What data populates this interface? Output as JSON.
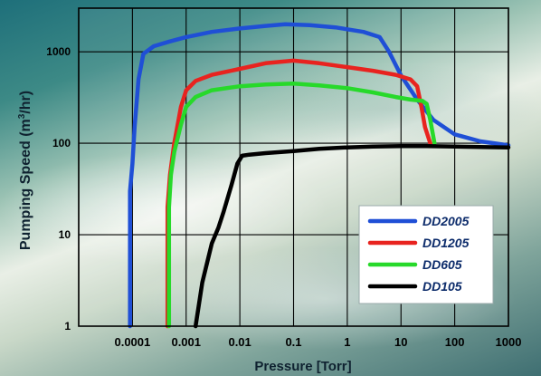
{
  "chart_data": {
    "type": "line",
    "xlabel": "Pressure [Torr]",
    "ylabel_main": "Pumping Speed (m",
    "ylabel_sup": "3",
    "ylabel_end": "/hr)",
    "x_scale": "log",
    "y_scale": "log",
    "xlim": [
      1e-05,
      1000
    ],
    "ylim": [
      1,
      3000
    ],
    "x_ticks": [
      {
        "value": 0.0001,
        "label": "0.0001"
      },
      {
        "value": 0.001,
        "label": "0.001"
      },
      {
        "value": 0.01,
        "label": "0.01"
      },
      {
        "value": 0.1,
        "label": "0.1"
      },
      {
        "value": 1,
        "label": "1"
      },
      {
        "value": 10,
        "label": "10"
      },
      {
        "value": 100,
        "label": "100"
      },
      {
        "value": 1000,
        "label": "1000"
      }
    ],
    "y_ticks": [
      {
        "value": 1,
        "label": "1"
      },
      {
        "value": 10,
        "label": "10"
      },
      {
        "value": 100,
        "label": "100"
      },
      {
        "value": 1000,
        "label": "1000"
      }
    ],
    "grid": true,
    "legend_position": "lower-right",
    "series": [
      {
        "name": "DD2005",
        "color": "#1f4fd6",
        "points": [
          [
            9e-05,
            1
          ],
          [
            9e-05,
            30
          ],
          [
            0.0001,
            60
          ],
          [
            0.00011,
            150
          ],
          [
            0.00013,
            500
          ],
          [
            0.00016,
            950
          ],
          [
            0.00025,
            1150
          ],
          [
            0.0005,
            1300
          ],
          [
            0.001,
            1450
          ],
          [
            0.003,
            1650
          ],
          [
            0.01,
            1800
          ],
          [
            0.03,
            1920
          ],
          [
            0.07,
            2000
          ],
          [
            0.2,
            1960
          ],
          [
            0.6,
            1850
          ],
          [
            2,
            1650
          ],
          [
            4,
            1450
          ],
          [
            6,
            1000
          ],
          [
            10,
            550
          ],
          [
            20,
            300
          ],
          [
            40,
            180
          ],
          [
            100,
            125
          ],
          [
            300,
            105
          ],
          [
            1000,
            95
          ]
        ]
      },
      {
        "name": "DD1205",
        "color": "#e8231f",
        "points": [
          [
            0.00045,
            1
          ],
          [
            0.00045,
            20
          ],
          [
            0.0005,
            45
          ],
          [
            0.0006,
            100
          ],
          [
            0.0008,
            250
          ],
          [
            0.001,
            380
          ],
          [
            0.0015,
            480
          ],
          [
            0.003,
            560
          ],
          [
            0.01,
            650
          ],
          [
            0.03,
            750
          ],
          [
            0.1,
            800
          ],
          [
            0.3,
            750
          ],
          [
            1,
            680
          ],
          [
            3,
            620
          ],
          [
            8,
            560
          ],
          [
            15,
            500
          ],
          [
            20,
            420
          ],
          [
            24,
            250
          ],
          [
            28,
            150
          ],
          [
            35,
            100
          ]
        ]
      },
      {
        "name": "DD605",
        "color": "#27d92a",
        "points": [
          [
            0.00048,
            1
          ],
          [
            0.00048,
            20
          ],
          [
            0.00052,
            45
          ],
          [
            0.0006,
            80
          ],
          [
            0.0008,
            160
          ],
          [
            0.001,
            250
          ],
          [
            0.0015,
            320
          ],
          [
            0.003,
            380
          ],
          [
            0.01,
            420
          ],
          [
            0.03,
            440
          ],
          [
            0.1,
            450
          ],
          [
            0.3,
            430
          ],
          [
            1,
            400
          ],
          [
            3,
            360
          ],
          [
            8,
            320
          ],
          [
            15,
            300
          ],
          [
            25,
            290
          ],
          [
            30,
            270
          ],
          [
            35,
            180
          ],
          [
            42,
            100
          ]
        ]
      },
      {
        "name": "DD105",
        "color": "#000000",
        "points": [
          [
            0.0015,
            1
          ],
          [
            0.002,
            3
          ],
          [
            0.003,
            8
          ],
          [
            0.004,
            12
          ],
          [
            0.005,
            18
          ],
          [
            0.007,
            35
          ],
          [
            0.009,
            60
          ],
          [
            0.011,
            73
          ],
          [
            0.015,
            75
          ],
          [
            0.03,
            78
          ],
          [
            0.1,
            82
          ],
          [
            0.3,
            87
          ],
          [
            1,
            90
          ],
          [
            3,
            92
          ],
          [
            10,
            93
          ],
          [
            30,
            93
          ],
          [
            100,
            92
          ],
          [
            300,
            91
          ],
          [
            1000,
            90
          ]
        ]
      }
    ]
  }
}
